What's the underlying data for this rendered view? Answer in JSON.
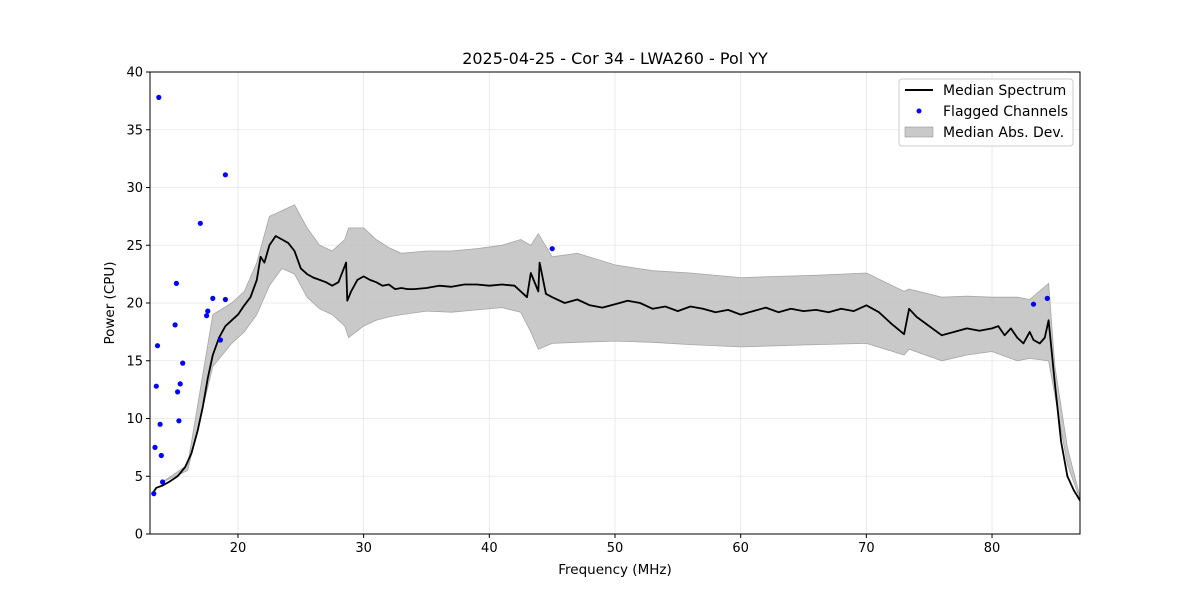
{
  "chart_data": {
    "type": "line",
    "title": "2025-04-25 - Cor 34 - LWA260 - Pol YY",
    "xlabel": "Frequency (MHz)",
    "ylabel": "Power (CPU)",
    "xlim": [
      13,
      87
    ],
    "ylim": [
      0,
      40
    ],
    "x_ticks": [
      20,
      30,
      40,
      50,
      60,
      70,
      80
    ],
    "y_ticks": [
      0,
      5,
      10,
      15,
      20,
      25,
      30,
      35,
      40
    ],
    "grid": true,
    "legend_position": "top-right",
    "colors": {
      "median": "#000000",
      "flagged": "#0000ff",
      "mad": "#bfbfbf"
    },
    "legend": {
      "median": "Median Spectrum",
      "flagged": "Flagged Channels",
      "mad": "Median Abs. Dev."
    },
    "series": [
      {
        "name": "Median Spectrum",
        "kind": "line",
        "x": [
          13.2,
          13.5,
          14.0,
          14.5,
          15.2,
          15.8,
          16.3,
          16.8,
          17.2,
          17.6,
          18.0,
          18.5,
          19.0,
          19.5,
          20.0,
          20.5,
          21.0,
          21.5,
          21.8,
          22.1,
          22.5,
          23.0,
          23.5,
          24.0,
          24.5,
          25.0,
          25.5,
          26.0,
          26.5,
          27.0,
          27.5,
          28.0,
          28.6,
          28.7,
          29.0,
          29.5,
          30.0,
          30.5,
          31.0,
          31.5,
          32.0,
          32.5,
          33.0,
          33.5,
          34.0,
          35.0,
          36.0,
          37.0,
          38.0,
          39.0,
          40.0,
          41.0,
          42.0,
          43.0,
          43.3,
          43.9,
          44.0,
          44.5,
          45.0,
          46.0,
          47.0,
          48.0,
          49.0,
          50.0,
          51.0,
          52.0,
          53.0,
          54.0,
          55.0,
          56.0,
          57.0,
          58.0,
          59.0,
          60.0,
          61.0,
          62.0,
          63.0,
          64.0,
          65.0,
          66.0,
          67.0,
          68.0,
          69.0,
          70.0,
          71.0,
          72.0,
          73.0,
          73.4,
          74.0,
          75.0,
          76.0,
          77.0,
          78.0,
          79.0,
          80.0,
          80.5,
          81.0,
          81.5,
          82.0,
          82.5,
          83.0,
          83.3,
          83.8,
          84.2,
          84.5,
          85.0,
          85.5,
          86.0,
          86.5,
          87.0
        ],
        "y": [
          3.5,
          4.0,
          4.2,
          4.5,
          5.0,
          5.8,
          7.0,
          9.0,
          11.0,
          13.5,
          15.5,
          17.0,
          18.0,
          18.5,
          19.0,
          19.8,
          20.5,
          22.0,
          24.0,
          23.5,
          25.0,
          25.8,
          25.5,
          25.2,
          24.5,
          23.0,
          22.5,
          22.2,
          22.0,
          21.8,
          21.5,
          21.8,
          23.5,
          20.2,
          21.0,
          22.0,
          22.3,
          22.0,
          21.8,
          21.5,
          21.6,
          21.2,
          21.3,
          21.2,
          21.2,
          21.3,
          21.5,
          21.4,
          21.6,
          21.6,
          21.5,
          21.6,
          21.5,
          20.5,
          22.6,
          21.0,
          23.5,
          20.8,
          20.5,
          20.0,
          20.3,
          19.8,
          19.6,
          19.9,
          20.2,
          20.0,
          19.5,
          19.7,
          19.3,
          19.7,
          19.5,
          19.2,
          19.4,
          19.0,
          19.3,
          19.6,
          19.2,
          19.5,
          19.3,
          19.4,
          19.2,
          19.5,
          19.3,
          19.8,
          19.2,
          18.2,
          17.3,
          19.5,
          18.8,
          18.0,
          17.2,
          17.5,
          17.8,
          17.6,
          17.8,
          18.0,
          17.2,
          17.8,
          17.0,
          16.5,
          17.5,
          16.8,
          16.5,
          17.0,
          18.5,
          13.0,
          8.0,
          5.0,
          3.8,
          2.9
        ]
      },
      {
        "name": "Median Abs. Dev.",
        "kind": "band",
        "x": [
          14.0,
          16.0,
          18.0,
          19.5,
          20.5,
          21.5,
          22.5,
          23.5,
          24.5,
          25.5,
          26.5,
          27.5,
          28.5,
          28.8,
          30.0,
          31.0,
          32.0,
          33.0,
          35.0,
          37.0,
          39.0,
          41.0,
          42.5,
          43.3,
          43.9,
          45.0,
          47.0,
          50.0,
          53.0,
          56.0,
          60.0,
          63.0,
          66.0,
          70.0,
          73.0,
          73.4,
          76.0,
          78.0,
          80.0,
          82.0,
          83.0,
          84.5,
          85.0,
          86.0,
          87.0
        ],
        "low": [
          4.5,
          5.5,
          14.5,
          16.5,
          17.5,
          19.0,
          21.5,
          23.0,
          22.5,
          20.5,
          19.5,
          19.0,
          18.0,
          17.0,
          18.0,
          18.5,
          18.8,
          19.0,
          19.3,
          19.2,
          19.4,
          19.6,
          19.2,
          17.5,
          16.0,
          16.5,
          16.6,
          16.7,
          16.6,
          16.4,
          16.2,
          16.3,
          16.4,
          16.5,
          15.5,
          16.0,
          15.0,
          15.5,
          15.8,
          15.0,
          15.2,
          15.0,
          12.0,
          6.0,
          3.0
        ],
        "high": [
          4.5,
          6.0,
          19.0,
          20.0,
          21.0,
          23.5,
          27.5,
          28.0,
          28.5,
          26.5,
          25.0,
          24.5,
          25.5,
          26.5,
          26.5,
          25.5,
          24.8,
          24.3,
          24.5,
          24.5,
          24.7,
          25.0,
          25.5,
          25.0,
          26.0,
          24.0,
          24.3,
          23.3,
          22.8,
          22.6,
          22.2,
          22.3,
          22.4,
          22.6,
          21.0,
          21.2,
          20.5,
          20.6,
          20.5,
          20.5,
          20.3,
          21.7,
          14.5,
          7.5,
          3.2
        ]
      },
      {
        "name": "Flagged Channels",
        "kind": "scatter",
        "x": [
          13.3,
          13.4,
          13.5,
          13.6,
          13.7,
          13.8,
          13.9,
          14.0,
          15.0,
          15.1,
          15.2,
          15.3,
          15.4,
          15.6,
          17.0,
          17.5,
          17.6,
          18.0,
          18.6,
          19.0,
          19.0,
          45.0,
          83.3,
          84.4
        ],
        "y": [
          3.5,
          7.5,
          12.8,
          16.3,
          37.8,
          9.5,
          6.8,
          4.5,
          18.1,
          21.7,
          12.3,
          9.8,
          13.0,
          14.8,
          26.9,
          18.9,
          19.3,
          20.4,
          16.8,
          20.3,
          31.1,
          24.7,
          19.9,
          20.4
        ]
      }
    ]
  }
}
